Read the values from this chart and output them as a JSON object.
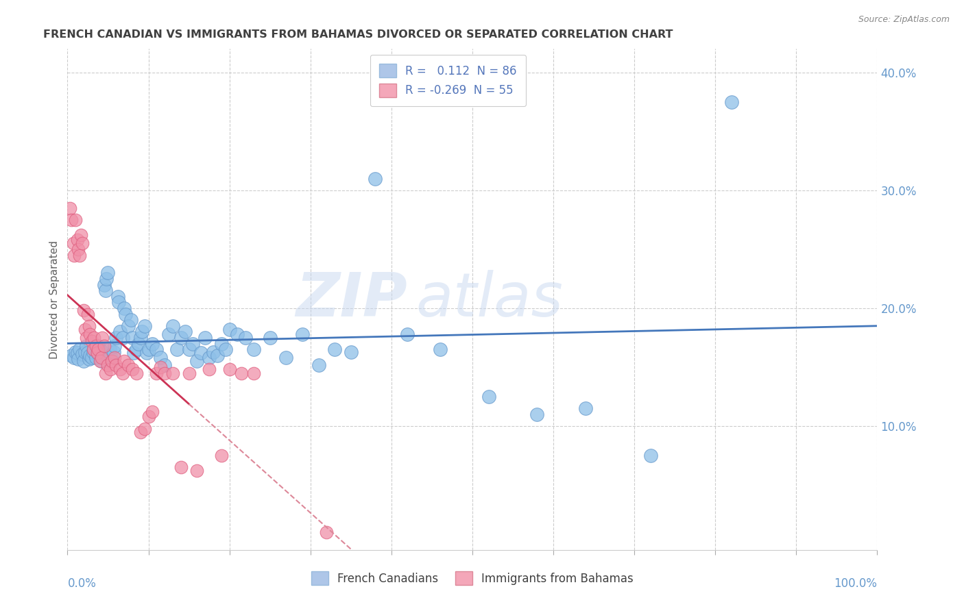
{
  "title": "FRENCH CANADIAN VS IMMIGRANTS FROM BAHAMAS DIVORCED OR SEPARATED CORRELATION CHART",
  "source": "Source: ZipAtlas.com",
  "ylabel": "Divorced or Separated",
  "xlim": [
    0.0,
    1.0
  ],
  "ylim": [
    -0.005,
    0.42
  ],
  "ytick_vals": [
    0.1,
    0.2,
    0.3,
    0.4
  ],
  "ytick_labels": [
    "10.0%",
    "20.0%",
    "30.0%",
    "40.0%"
  ],
  "legend_blue_label": "R =   0.112  N = 86",
  "legend_pink_label": "R = -0.269  N = 55",
  "legend_blue_color": "#aec6e8",
  "legend_pink_color": "#f4a7b9",
  "scatter_blue_color": "#8ec0e8",
  "scatter_blue_edge": "#6699cc",
  "scatter_pink_color": "#f090a8",
  "scatter_pink_edge": "#e06080",
  "trendline_blue_color": "#4477bb",
  "trendline_pink_solid_color": "#cc3355",
  "trendline_pink_dash_color": "#dd8899",
  "watermark_bold": "ZIP",
  "watermark_light": "atlas",
  "background_color": "#ffffff",
  "grid_color": "#cccccc",
  "title_color": "#404040",
  "axis_label_color": "#6699cc",
  "blue_points_x": [
    0.005,
    0.008,
    0.01,
    0.012,
    0.013,
    0.015,
    0.018,
    0.02,
    0.022,
    0.023,
    0.025,
    0.027,
    0.028,
    0.03,
    0.032,
    0.033,
    0.035,
    0.037,
    0.038,
    0.04,
    0.042,
    0.043,
    0.045,
    0.047,
    0.048,
    0.05,
    0.052,
    0.053,
    0.055,
    0.057,
    0.058,
    0.06,
    0.062,
    0.063,
    0.065,
    0.068,
    0.07,
    0.072,
    0.075,
    0.078,
    0.08,
    0.082,
    0.085,
    0.088,
    0.09,
    0.092,
    0.095,
    0.098,
    0.1,
    0.105,
    0.11,
    0.115,
    0.12,
    0.125,
    0.13,
    0.135,
    0.14,
    0.145,
    0.15,
    0.155,
    0.16,
    0.165,
    0.17,
    0.175,
    0.18,
    0.185,
    0.19,
    0.195,
    0.2,
    0.21,
    0.22,
    0.23,
    0.25,
    0.27,
    0.29,
    0.31,
    0.33,
    0.35,
    0.38,
    0.42,
    0.46,
    0.52,
    0.58,
    0.64,
    0.72,
    0.82
  ],
  "blue_points_y": [
    0.16,
    0.158,
    0.163,
    0.162,
    0.157,
    0.165,
    0.161,
    0.155,
    0.163,
    0.168,
    0.162,
    0.157,
    0.16,
    0.158,
    0.163,
    0.165,
    0.158,
    0.162,
    0.168,
    0.165,
    0.155,
    0.163,
    0.22,
    0.215,
    0.225,
    0.23,
    0.165,
    0.16,
    0.155,
    0.163,
    0.168,
    0.175,
    0.21,
    0.205,
    0.18,
    0.175,
    0.2,
    0.195,
    0.185,
    0.19,
    0.175,
    0.162,
    0.165,
    0.17,
    0.175,
    0.18,
    0.185,
    0.162,
    0.165,
    0.17,
    0.165,
    0.158,
    0.152,
    0.178,
    0.185,
    0.165,
    0.175,
    0.18,
    0.165,
    0.17,
    0.155,
    0.162,
    0.175,
    0.158,
    0.163,
    0.16,
    0.17,
    0.165,
    0.182,
    0.178,
    0.175,
    0.165,
    0.175,
    0.158,
    0.178,
    0.152,
    0.165,
    0.163,
    0.31,
    0.178,
    0.165,
    0.125,
    0.11,
    0.115,
    0.075,
    0.375
  ],
  "pink_points_x": [
    0.003,
    0.005,
    0.007,
    0.008,
    0.01,
    0.012,
    0.013,
    0.015,
    0.017,
    0.018,
    0.02,
    0.022,
    0.023,
    0.025,
    0.027,
    0.028,
    0.03,
    0.032,
    0.033,
    0.035,
    0.037,
    0.038,
    0.04,
    0.042,
    0.043,
    0.045,
    0.047,
    0.05,
    0.053,
    0.055,
    0.058,
    0.06,
    0.065,
    0.068,
    0.07,
    0.075,
    0.08,
    0.085,
    0.09,
    0.095,
    0.1,
    0.105,
    0.11,
    0.115,
    0.12,
    0.13,
    0.14,
    0.15,
    0.16,
    0.175,
    0.19,
    0.2,
    0.215,
    0.23,
    0.32
  ],
  "pink_points_y": [
    0.285,
    0.275,
    0.255,
    0.245,
    0.275,
    0.258,
    0.25,
    0.245,
    0.262,
    0.255,
    0.198,
    0.182,
    0.175,
    0.195,
    0.185,
    0.178,
    0.172,
    0.165,
    0.175,
    0.168,
    0.162,
    0.165,
    0.155,
    0.158,
    0.175,
    0.168,
    0.145,
    0.152,
    0.148,
    0.155,
    0.158,
    0.152,
    0.148,
    0.145,
    0.155,
    0.152,
    0.148,
    0.145,
    0.095,
    0.098,
    0.108,
    0.112,
    0.145,
    0.15,
    0.145,
    0.145,
    0.065,
    0.145,
    0.062,
    0.148,
    0.075,
    0.148,
    0.145,
    0.145,
    0.01
  ]
}
